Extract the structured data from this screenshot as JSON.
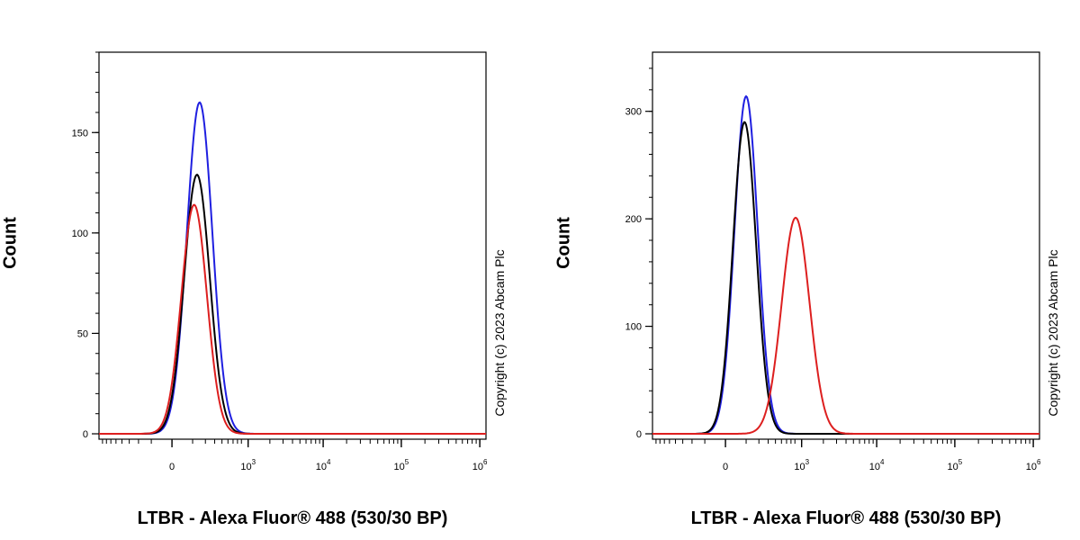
{
  "chart_data": [
    {
      "type": "line",
      "subtype": "flow-cytometry-histogram",
      "xlabel": "LTBR - Alexa Fluor® 488 (530/30 BP)",
      "ylabel": "Count",
      "watermark": "Copyright (c) 2023 Abcam Plc",
      "x_scale": "biexponential",
      "x_ticks": [
        {
          "label": "0",
          "exp": ""
        },
        {
          "label": "10",
          "exp": "3"
        },
        {
          "label": "10",
          "exp": "4"
        },
        {
          "label": "10",
          "exp": "5"
        },
        {
          "label": "10",
          "exp": "6"
        }
      ],
      "ylim": [
        0,
        190
      ],
      "y_ticks": [
        0,
        50,
        100,
        150
      ],
      "series": [
        {
          "color": "#1f1fe0",
          "peak_x": 150,
          "peak_y": 165,
          "width": 0.55
        },
        {
          "color": "#000000",
          "peak_x": 130,
          "peak_y": 129,
          "width": 0.55
        },
        {
          "color": "#dd1f1f",
          "peak_x": 110,
          "peak_y": 114,
          "width": 0.55
        }
      ]
    },
    {
      "type": "line",
      "subtype": "flow-cytometry-histogram",
      "xlabel": "LTBR - Alexa Fluor® 488 (530/30 BP)",
      "ylabel": "Count",
      "watermark": "Copyright (c) 2023 Abcam Plc",
      "x_scale": "biexponential",
      "x_ticks": [
        {
          "label": "0",
          "exp": ""
        },
        {
          "label": "10",
          "exp": "3"
        },
        {
          "label": "10",
          "exp": "4"
        },
        {
          "label": "10",
          "exp": "5"
        },
        {
          "label": "10",
          "exp": "6"
        }
      ],
      "ylim": [
        0,
        355
      ],
      "y_ticks": [
        0,
        100,
        200,
        300
      ],
      "series": [
        {
          "color": "#1f1fe0",
          "peak_x": 100,
          "peak_y": 314,
          "width": 0.5
        },
        {
          "color": "#000000",
          "peak_x": 90,
          "peak_y": 290,
          "width": 0.5
        },
        {
          "color": "#dd1f1f",
          "peak_x": 820,
          "peak_y": 201,
          "width": 0.6
        }
      ]
    }
  ]
}
